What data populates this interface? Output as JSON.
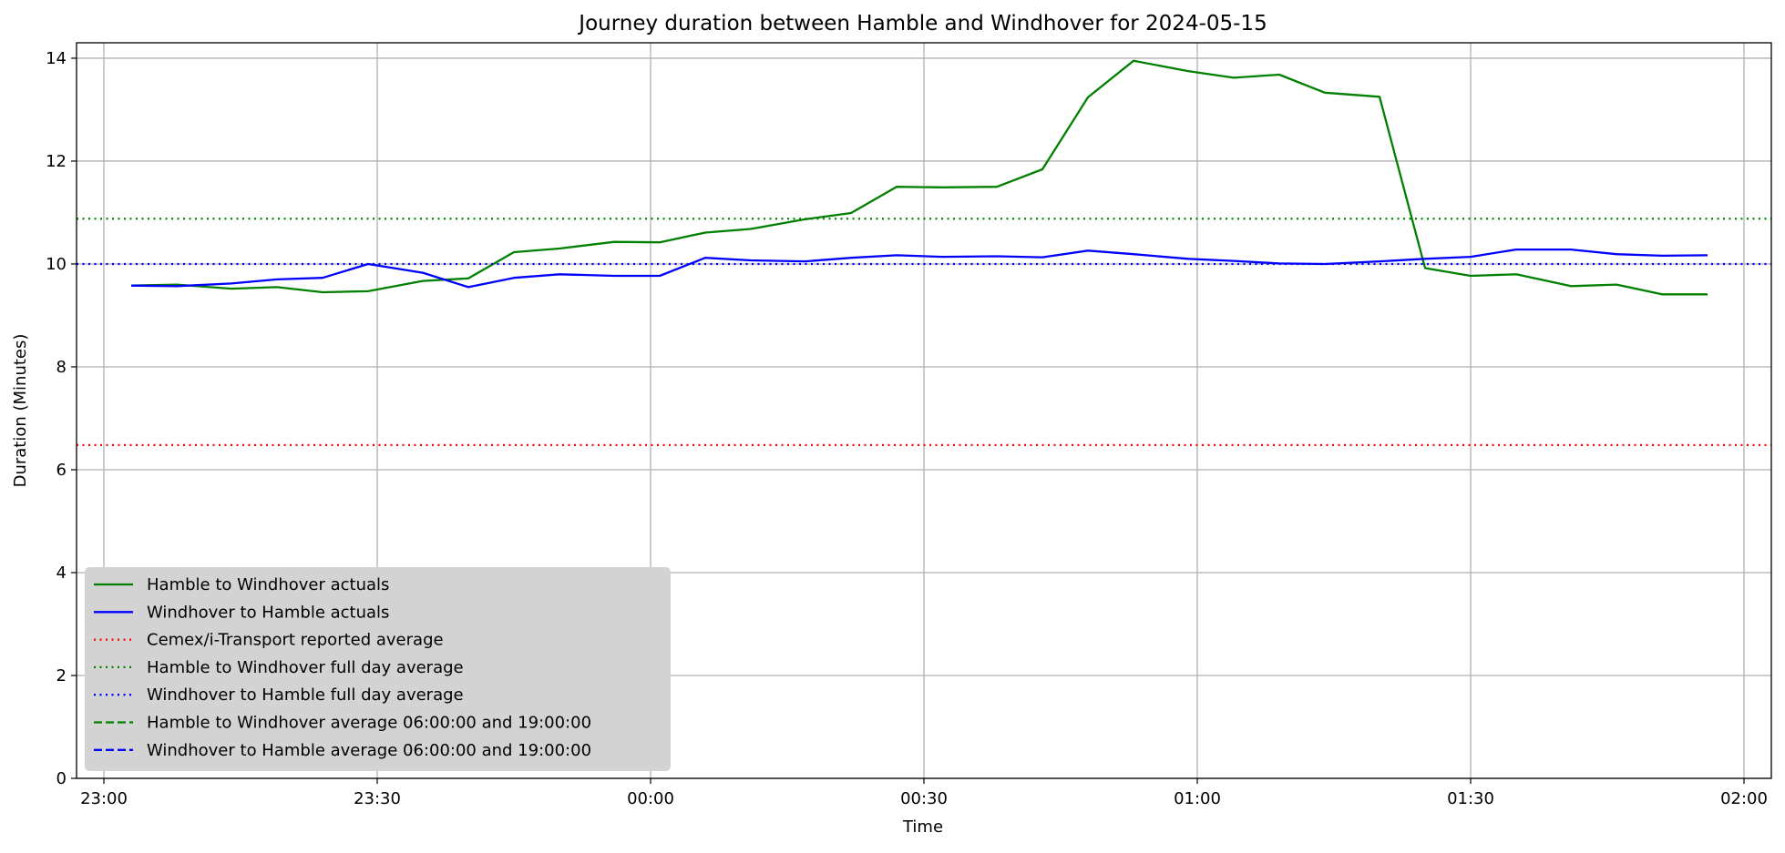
{
  "chart_data": {
    "type": "line",
    "title": "Journey duration between Hamble and Windhover for 2024-05-15",
    "xlabel": "Time",
    "ylabel": "Duration  (Minutes)",
    "xlim": [
      "22:57",
      "02:03"
    ],
    "ylim": [
      0,
      14.3
    ],
    "xticks": [
      "23:00",
      "23:30",
      "00:00",
      "00:30",
      "01:00",
      "01:30",
      "02:00"
    ],
    "yticks": [
      0,
      2,
      4,
      6,
      8,
      10,
      12,
      14
    ],
    "grid": true,
    "legend_position": "lower-left",
    "series": [
      {
        "name": "Hamble to Windhover actuals",
        "color": "#008000",
        "style": "solid",
        "x": [
          "23:03",
          "23:08",
          "23:14",
          "23:19",
          "23:24",
          "23:29",
          "23:35",
          "23:40",
          "23:45",
          "23:50",
          "23:56",
          "00:01",
          "00:06",
          "00:11",
          "00:17",
          "00:22",
          "00:27",
          "00:32",
          "00:38",
          "00:43",
          "00:48",
          "00:53",
          "00:59",
          "01:04",
          "01:09",
          "01:14",
          "01:20",
          "01:25",
          "01:30",
          "01:35",
          "01:41",
          "01:46",
          "01:51",
          "01:56"
        ],
        "values": [
          9.58,
          9.6,
          9.52,
          9.55,
          9.45,
          9.47,
          9.67,
          9.72,
          10.23,
          10.3,
          10.43,
          10.42,
          10.61,
          10.68,
          10.87,
          10.99,
          11.5,
          11.49,
          11.5,
          11.84,
          13.24,
          13.95,
          13.75,
          13.62,
          13.68,
          13.33,
          13.25,
          9.92,
          9.77,
          9.8,
          9.57,
          9.6,
          9.41,
          9.41
        ]
      },
      {
        "name": "Windhover to Hamble actuals",
        "color": "#0000ff",
        "style": "solid",
        "x": [
          "23:03",
          "23:08",
          "23:14",
          "23:19",
          "23:24",
          "23:29",
          "23:35",
          "23:40",
          "23:45",
          "23:50",
          "23:56",
          "00:01",
          "00:06",
          "00:11",
          "00:17",
          "00:22",
          "00:27",
          "00:32",
          "00:38",
          "00:43",
          "00:48",
          "00:53",
          "00:59",
          "01:04",
          "01:09",
          "01:14",
          "01:20",
          "01:25",
          "01:30",
          "01:35",
          "01:41",
          "01:46",
          "01:51",
          "01:56"
        ],
        "values": [
          9.58,
          9.57,
          9.62,
          9.7,
          9.73,
          10.0,
          9.83,
          9.55,
          9.73,
          9.8,
          9.77,
          9.77,
          10.12,
          10.07,
          10.05,
          10.12,
          10.17,
          10.14,
          10.15,
          10.13,
          10.26,
          10.19,
          10.1,
          10.06,
          10.01,
          10.0,
          10.05,
          10.1,
          10.14,
          10.28,
          10.28,
          10.19,
          10.16,
          10.17
        ]
      },
      {
        "name": "Cemex/i-Transport reported average",
        "color": "#ff0000",
        "style": "dotted",
        "constant": 6.48
      },
      {
        "name": "Hamble to Windhover full day average",
        "color": "#008000",
        "style": "dotted",
        "constant": 10.88
      },
      {
        "name": "Windhover to Hamble full day average",
        "color": "#0000ff",
        "style": "dotted",
        "constant": 10.0
      },
      {
        "name": "Hamble to Windhover average 06:00:00 and 19:00:00",
        "color": "#008000",
        "style": "dashed"
      },
      {
        "name": "Windhover to Hamble average 06:00:00 and 19:00:00",
        "color": "#0000ff",
        "style": "dashed"
      }
    ]
  }
}
